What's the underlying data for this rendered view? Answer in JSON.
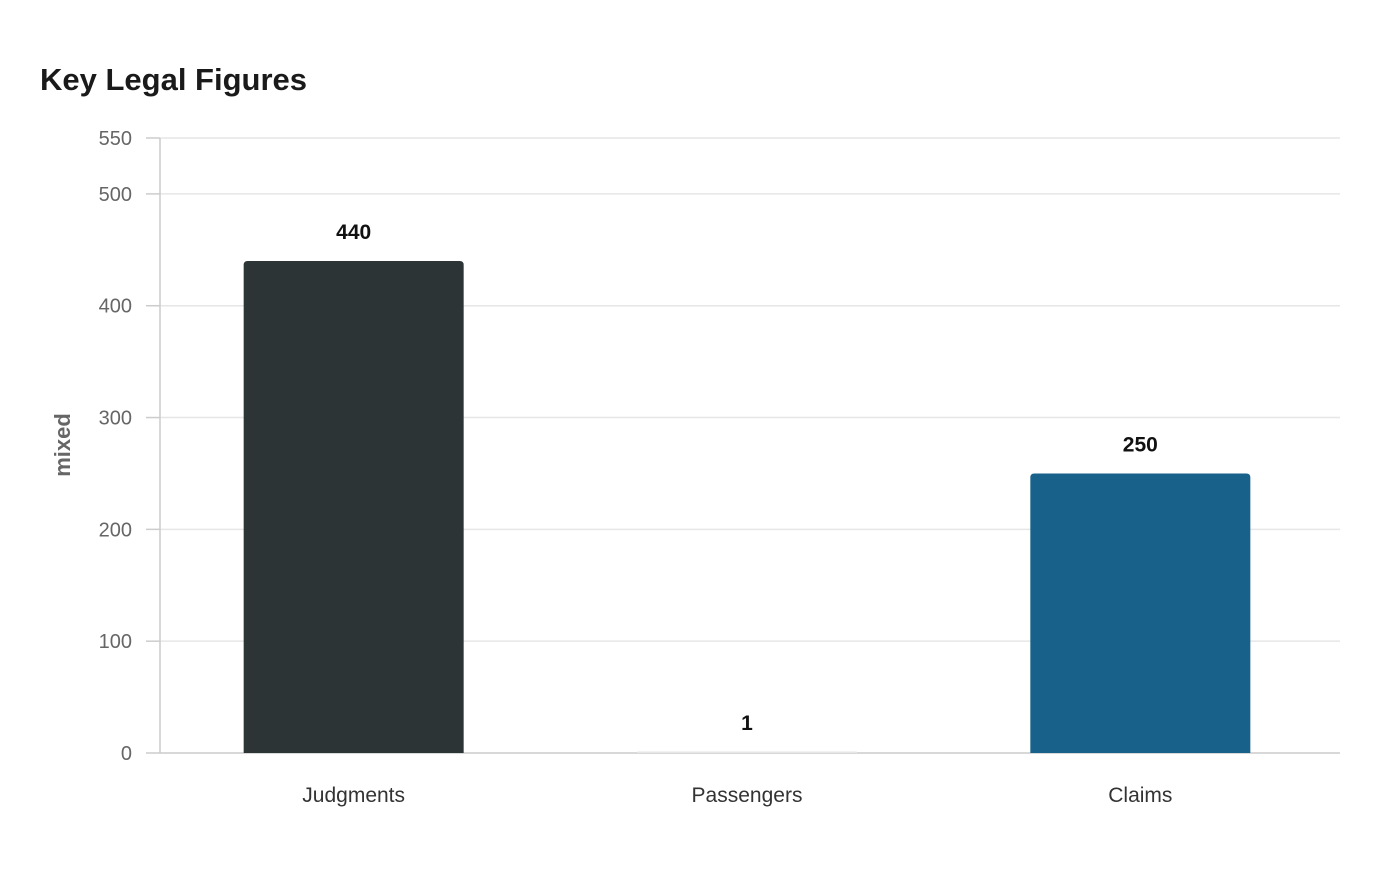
{
  "chart_data": {
    "type": "bar",
    "title": "Key Legal Figures",
    "xlabel": "",
    "ylabel": "mixed",
    "categories": [
      "Judgments",
      "Passengers",
      "Claims"
    ],
    "values": [
      440,
      1,
      250
    ],
    "data_labels": [
      "440",
      "1",
      "250"
    ],
    "colors": [
      "#2d3436",
      "#e6e6e6",
      "#17618a"
    ],
    "ylim": [
      0,
      550
    ],
    "yticks": [
      0,
      100,
      200,
      300,
      400,
      500,
      550
    ],
    "ytick_labels": [
      "0",
      "100",
      "200",
      "300",
      "400",
      "500",
      "550"
    ],
    "grid": true,
    "legend": "none"
  }
}
